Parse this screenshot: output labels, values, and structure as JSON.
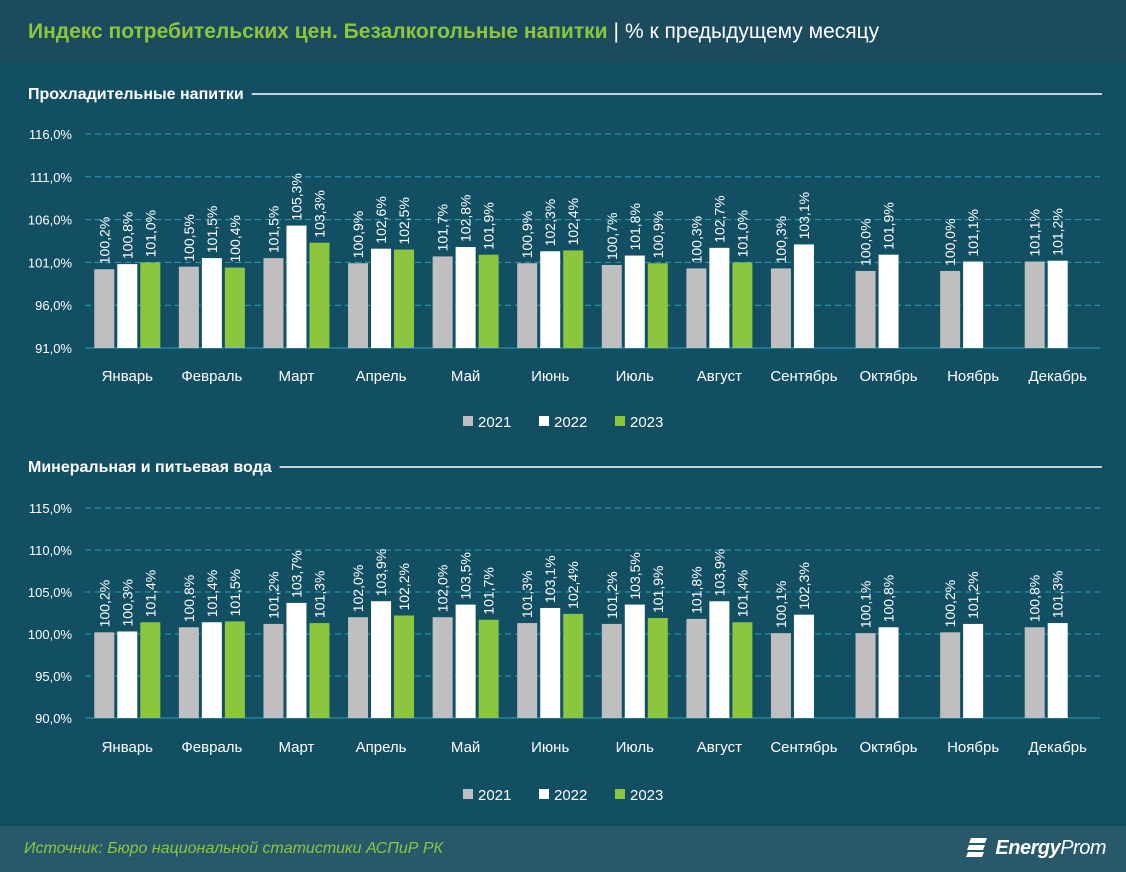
{
  "header": {
    "title_main": "Индекс потребительских цен. Безалкогольные напитки",
    "title_separator": "|",
    "title_unit": "% к предыдущему месяцу"
  },
  "footer": {
    "source": "Источник: Бюро национальной статистики АСПиР РК",
    "logo_text": "EnergyProm"
  },
  "colors": {
    "2021": "#bfbfbf",
    "2022": "#ffffff",
    "2023": "#8cc63f",
    "grid": "#2a9fb6",
    "background": "#134f63"
  },
  "chart_data": [
    {
      "type": "bar",
      "title": "Прохладительные напитки",
      "categories": [
        "Январь",
        "Февраль",
        "Март",
        "Апрель",
        "Май",
        "Июнь",
        "Июль",
        "Август",
        "Сентябрь",
        "Октябрь",
        "Ноябрь",
        "Декабрь"
      ],
      "ylim": [
        91,
        116
      ],
      "yticks": [
        "91,0%",
        "96,0%",
        "101,0%",
        "106,0%",
        "111,0%",
        "116,0%"
      ],
      "ytick_values": [
        91,
        96,
        101,
        106,
        111,
        116
      ],
      "grid": true,
      "legend": "bottom",
      "series": [
        {
          "name": "2021",
          "values": [
            100.2,
            100.5,
            101.5,
            100.9,
            101.7,
            100.9,
            100.7,
            100.3,
            100.3,
            100.0,
            100.0,
            101.1
          ],
          "labels": [
            "100,2%",
            "100,5%",
            "101,5%",
            "100,9%",
            "101,7%",
            "100,9%",
            "100,7%",
            "100,3%",
            "100,3%",
            "100,0%",
            "100,0%",
            "101,1%"
          ]
        },
        {
          "name": "2022",
          "values": [
            100.8,
            101.5,
            105.3,
            102.6,
            102.8,
            102.3,
            101.8,
            102.7,
            103.1,
            101.9,
            101.1,
            101.2
          ],
          "labels": [
            "100,8%",
            "101,5%",
            "105,3%",
            "102,6%",
            "102,8%",
            "102,3%",
            "101,8%",
            "102,7%",
            "103,1%",
            "101,9%",
            "101,1%",
            "101,2%"
          ]
        },
        {
          "name": "2023",
          "values": [
            101.0,
            100.4,
            103.3,
            102.5,
            101.9,
            102.4,
            100.9,
            101.0,
            null,
            null,
            null,
            null
          ],
          "labels": [
            "101,0%",
            "100,4%",
            "103,3%",
            "102,5%",
            "101,9%",
            "102,4%",
            "100,9%",
            "101,0%",
            null,
            null,
            null,
            null
          ]
        }
      ]
    },
    {
      "type": "bar",
      "title": "Минеральная и питьевая вода",
      "categories": [
        "Январь",
        "Февраль",
        "Март",
        "Апрель",
        "Май",
        "Июнь",
        "Июль",
        "Август",
        "Сентябрь",
        "Октябрь",
        "Ноябрь",
        "Декабрь"
      ],
      "ylim": [
        90,
        115
      ],
      "yticks": [
        "90,0%",
        "95,0%",
        "100,0%",
        "105,0%",
        "110,0%",
        "115,0%"
      ],
      "ytick_values": [
        90,
        95,
        100,
        105,
        110,
        115
      ],
      "grid": true,
      "legend": "bottom",
      "series": [
        {
          "name": "2021",
          "values": [
            100.2,
            100.8,
            101.2,
            102.0,
            102.0,
            101.3,
            101.2,
            101.8,
            100.1,
            100.1,
            100.2,
            100.8
          ],
          "labels": [
            "100,2%",
            "100,8%",
            "101,2%",
            "102,0%",
            "102,0%",
            "101,3%",
            "101,2%",
            "101,8%",
            "100,1%",
            "100,1%",
            "100,2%",
            "100,8%"
          ]
        },
        {
          "name": "2022",
          "values": [
            100.3,
            101.4,
            103.7,
            103.9,
            103.5,
            103.1,
            103.5,
            103.9,
            102.3,
            100.8,
            101.2,
            101.3
          ],
          "labels": [
            "100,3%",
            "101,4%",
            "103,7%",
            "103,9%",
            "103,5%",
            "103,1%",
            "103,5%",
            "103,9%",
            "102,3%",
            "100,8%",
            "101,2%",
            "101,3%"
          ]
        },
        {
          "name": "2023",
          "values": [
            101.4,
            101.5,
            101.3,
            102.2,
            101.7,
            102.4,
            101.9,
            101.4,
            null,
            null,
            null,
            null
          ],
          "labels": [
            "101,4%",
            "101,5%",
            "101,3%",
            "102,2%",
            "101,7%",
            "102,4%",
            "101,9%",
            "101,4%",
            null,
            null,
            null,
            null
          ]
        }
      ]
    }
  ]
}
